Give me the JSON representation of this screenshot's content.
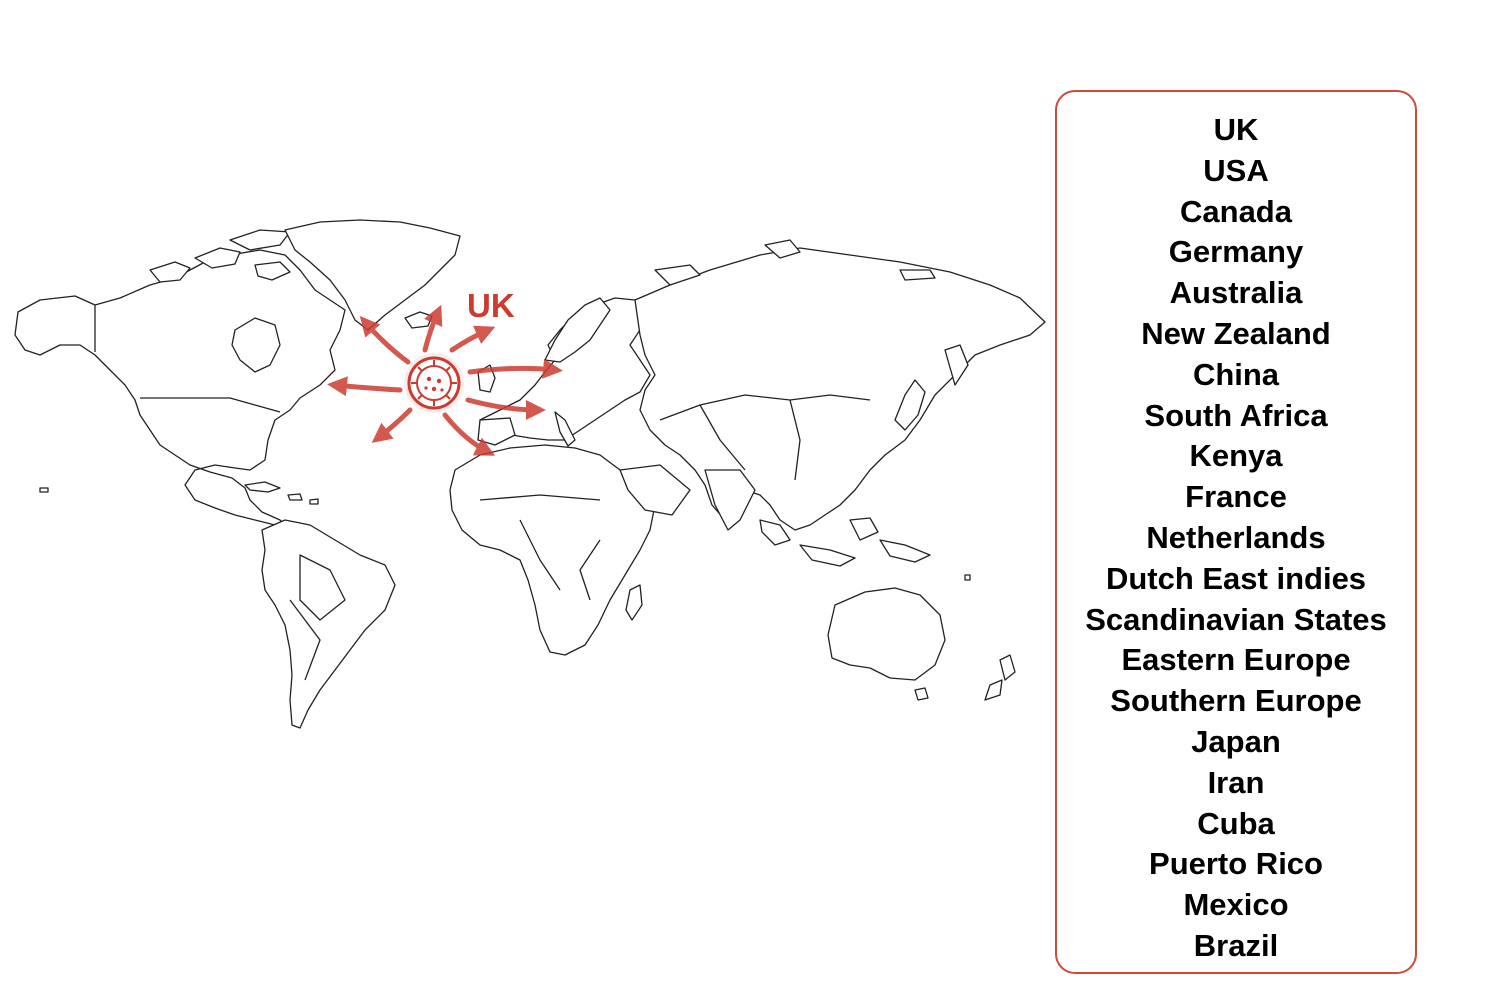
{
  "map": {
    "origin_label": "UK",
    "accent_color": "#cc3b30",
    "origin_icon": "virus-icon"
  },
  "country_list": {
    "border_color": "#cf4a3b",
    "items": [
      "UK",
      "USA",
      "Canada",
      "Germany",
      "Australia",
      "New Zealand",
      "China",
      "South Africa",
      "Kenya",
      "France",
      "Netherlands",
      "Dutch East indies",
      "Scandinavian States",
      "Eastern Europe",
      "Southern Europe",
      "Japan",
      "Iran",
      "Cuba",
      "Puerto Rico",
      "Mexico",
      "Brazil"
    ]
  }
}
